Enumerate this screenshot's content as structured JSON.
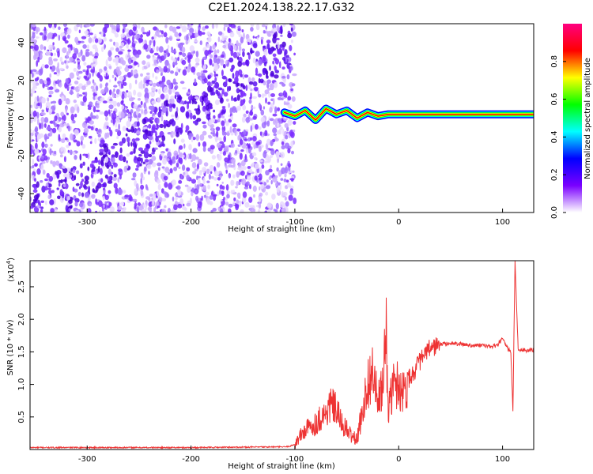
{
  "figure": {
    "title": "C2E1.2024.138.22.17.G32"
  },
  "chart_data": [
    {
      "type": "heatmap",
      "xlabel": "Height of straight line (km)",
      "ylabel": "Frequency (Hz)",
      "xlim": [
        -355,
        130
      ],
      "ylim": [
        -50,
        50
      ],
      "xticks": [
        -300,
        -200,
        -100,
        0,
        100
      ],
      "xtick_labels": [
        "-300",
        "-200",
        "-100",
        "0",
        "100"
      ],
      "yticks": [
        -40,
        -20,
        0,
        20,
        40
      ],
      "ytick_labels": [
        "-40",
        "-20",
        "0",
        "20",
        "40"
      ],
      "noise_region_x": [
        -355,
        -100
      ],
      "signal_track": {
        "x": [
          -110,
          -100,
          -90,
          -80,
          -70,
          -60,
          -50,
          -40,
          -30,
          -20,
          -10,
          0,
          20,
          50,
          80,
          100,
          130
        ],
        "y": [
          3,
          1,
          4,
          -1,
          5,
          2,
          4,
          0,
          3,
          1,
          2,
          2,
          2,
          2,
          2,
          2,
          2
        ]
      },
      "colorbar": {
        "label": "Normalized spectral amplitude",
        "range": [
          0,
          1
        ],
        "ticks": [
          0.0,
          0.2,
          0.4,
          0.6,
          0.8
        ],
        "tick_labels": [
          "0.0",
          "0.2",
          "0.4",
          "0.6",
          "0.8"
        ],
        "colors": [
          "#ffffff",
          "#7a00ff",
          "#0000ff",
          "#00ffff",
          "#00ff00",
          "#ffff00",
          "#ff0000",
          "#ff0080"
        ]
      },
      "grid": false
    },
    {
      "type": "line",
      "xlabel": "Height of straight line (km)",
      "ylabel": "SNR (10 * v/v)",
      "scale_label": "(x10",
      "scale_exponent": "4",
      "scale_suffix": ")",
      "xlim": [
        -355,
        130
      ],
      "ylim": [
        0,
        2.9
      ],
      "xticks": [
        -300,
        -200,
        -100,
        0,
        100
      ],
      "xtick_labels": [
        "-300",
        "-200",
        "-100",
        "0",
        "100"
      ],
      "yticks": [
        0.5,
        1.0,
        1.5,
        2.0,
        2.5
      ],
      "ytick_labels": [
        "0.5",
        "1.0",
        "1.5",
        "2.0",
        "2.5"
      ],
      "series": [
        {
          "color": "#ee3333",
          "x": [
            -355,
            -300,
            -200,
            -120,
            -110,
            -105,
            -100,
            -95,
            -90,
            -85,
            -80,
            -75,
            -70,
            -65,
            -60,
            -55,
            -50,
            -45,
            -40,
            -35,
            -30,
            -25,
            -20,
            -15,
            -12,
            -10,
            -5,
            0,
            5,
            10,
            15,
            20,
            25,
            30,
            40,
            50,
            60,
            70,
            80,
            90,
            95,
            100,
            105,
            108,
            110,
            112,
            115,
            120,
            125,
            130
          ],
          "y": [
            0.03,
            0.03,
            0.03,
            0.04,
            0.04,
            0.05,
            0.08,
            0.2,
            0.3,
            0.35,
            0.4,
            0.5,
            0.55,
            0.7,
            0.6,
            0.4,
            0.3,
            0.2,
            0.15,
            0.6,
            1.0,
            1.2,
            0.7,
            1.0,
            1.8,
            0.6,
            1.0,
            1.0,
            0.9,
            1.1,
            1.2,
            1.35,
            1.45,
            1.55,
            1.62,
            1.63,
            1.62,
            1.6,
            1.6,
            1.58,
            1.6,
            1.7,
            1.55,
            1.5,
            0.6,
            2.9,
            1.55,
            1.52,
            1.52,
            1.53
          ]
        }
      ],
      "grid": false
    }
  ]
}
